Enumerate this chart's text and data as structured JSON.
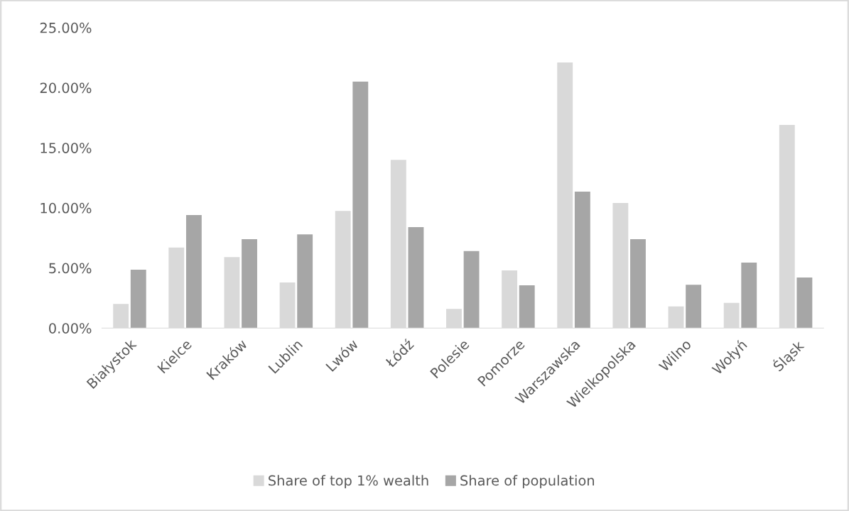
{
  "chart_data": {
    "type": "bar",
    "categories": [
      "Białystok",
      "Kielce",
      "Kraków",
      "Lublin",
      "Lwów",
      "Łódź",
      "Polesie",
      "Pomorze",
      "Warszawska",
      "Wielkopolska",
      "Wilno",
      "Wołyń",
      "Śląsk"
    ],
    "series": [
      {
        "name": "Share of top 1% wealth",
        "color": "#d9d9d9",
        "values": [
          2.0,
          6.7,
          5.9,
          3.8,
          9.75,
          14.0,
          1.6,
          4.8,
          22.1,
          10.4,
          1.8,
          2.1,
          16.9
        ]
      },
      {
        "name": "Share of population",
        "color": "#a6a6a6",
        "values": [
          4.85,
          9.4,
          7.4,
          7.8,
          20.5,
          8.4,
          6.4,
          3.55,
          11.35,
          7.4,
          3.6,
          5.45,
          4.2
        ]
      }
    ],
    "ylim": [
      0,
      25
    ],
    "yticks": [
      {
        "value": 0,
        "label": "0.00%"
      },
      {
        "value": 5,
        "label": "5.00%"
      },
      {
        "value": 10,
        "label": "10.00%"
      },
      {
        "value": 15,
        "label": "15.00%"
      },
      {
        "value": 20,
        "label": "20.00%"
      },
      {
        "value": 25,
        "label": "25.00%"
      }
    ],
    "grid": false,
    "legend": "bottom"
  }
}
